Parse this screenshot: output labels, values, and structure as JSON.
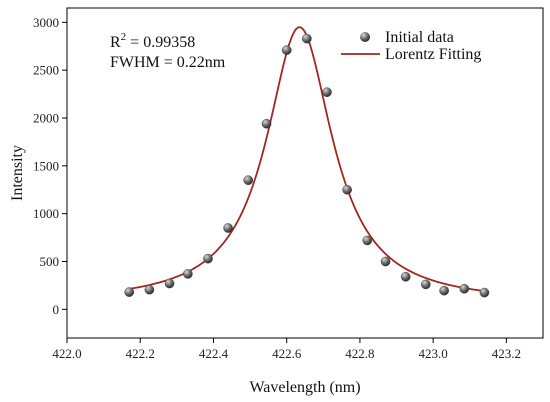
{
  "chart_data": {
    "type": "scatter",
    "xlabel": "Wavelength (nm)",
    "ylabel": "Intensity",
    "xlim": [
      422.0,
      423.3
    ],
    "ylim": [
      -300,
      3150
    ],
    "xticks": [
      422.0,
      422.2,
      422.4,
      422.6,
      422.8,
      423.0,
      423.2
    ],
    "xtick_labels": [
      "422.0",
      "422.2",
      "422.4",
      "422.6",
      "422.8",
      "423.0",
      "423.2"
    ],
    "yticks": [
      0,
      500,
      1000,
      1500,
      2000,
      2500,
      3000
    ],
    "ytick_labels": [
      "0",
      "500",
      "1000",
      "1500",
      "2000",
      "2500",
      "3000"
    ],
    "annotations": {
      "r2_prefix": "R",
      "r2_sup": "2",
      "r2_value": " = 0.99358",
      "fwhm": "FWHM = 0.22nm"
    },
    "legend": {
      "position": "top-right",
      "entries": [
        "Initial data",
        "Lorentz Fitting"
      ]
    },
    "series": [
      {
        "name": "Initial data",
        "kind": "scatter",
        "color": "#6e6e6e",
        "x": [
          422.17,
          422.225,
          422.28,
          422.33,
          422.385,
          422.44,
          422.495,
          422.545,
          422.6,
          422.655,
          422.71,
          422.765,
          422.82,
          422.87,
          422.925,
          422.98,
          423.03,
          423.085,
          423.14
        ],
        "y": [
          180,
          205,
          270,
          370,
          530,
          850,
          1350,
          1940,
          2710,
          2830,
          2270,
          1250,
          720,
          500,
          340,
          260,
          195,
          215,
          175
        ]
      },
      {
        "name": "Lorentz Fitting",
        "kind": "line",
        "color": "#a3271f",
        "model": "lorentz",
        "x0": 422.635,
        "fwhm": 0.22,
        "y0": 60,
        "amplitude": 2890,
        "x_range": [
          422.17,
          423.14
        ]
      }
    ]
  }
}
